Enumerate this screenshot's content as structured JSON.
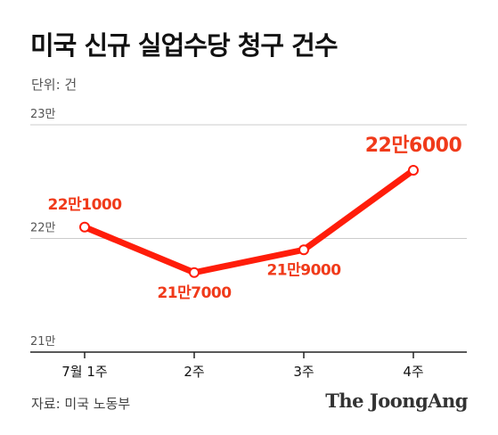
{
  "title": "미국 신규 실업수당 청구 건수",
  "unit": "단위: 건",
  "source": "자료: 미국 노동부",
  "logo": "The JoongAng",
  "colors": {
    "line": "#ff1d0a",
    "label": "#f03a1a",
    "grid": "#cccccc",
    "axis": "#222222"
  },
  "chart_data": {
    "type": "line",
    "categories": [
      "7월 1주",
      "2주",
      "3주",
      "4주"
    ],
    "values": [
      221000,
      217000,
      219000,
      226000
    ],
    "data_labels": [
      "22만1000",
      "21만7000",
      "21만9000",
      "22만6000"
    ],
    "yticks": [
      210000,
      220000,
      230000
    ],
    "ytick_labels": [
      "21만",
      "22만",
      "23만"
    ],
    "ylim": [
      210000,
      230000
    ],
    "grid": true,
    "xlabel": "",
    "ylabel": ""
  }
}
